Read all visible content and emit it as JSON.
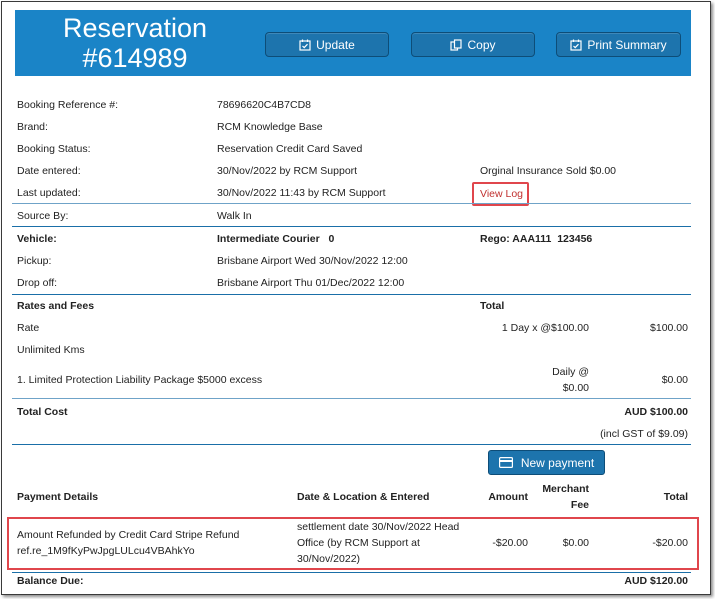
{
  "header": {
    "title_line1": "Reservation",
    "title_line2": "#614989",
    "buttons": {
      "update": "Update",
      "copy": "Copy",
      "print": "Print Summary"
    }
  },
  "details": {
    "booking_ref_label": "Booking Reference #:",
    "booking_ref_value": "78696620C4B7CD8",
    "brand_label": "Brand:",
    "brand_value": "RCM Knowledge Base",
    "status_label": "Booking Status:",
    "status_value": "Reservation Credit Card Saved",
    "entered_label": "Date entered:",
    "entered_value": "30/Nov/2022 by RCM Support",
    "insurance_note": "Orginal Insurance Sold $0.00",
    "updated_label": "Last updated:",
    "updated_value": "30/Nov/2022 11:43 by RCM Support",
    "view_log": "View Log",
    "source_label": "Source By:",
    "source_value": "Walk In"
  },
  "vehicle": {
    "label": "Vehicle:",
    "value": "Intermediate Courier   0",
    "rego": "Rego: AAA111  123456",
    "pickup_label": "Pickup:",
    "pickup_value": "Brisbane Airport Wed 30/Nov/2022 12:00",
    "dropoff_label": "Drop off:",
    "dropoff_value": "Brisbane Airport Thu 01/Dec/2022 12:00"
  },
  "rates": {
    "heading": "Rates and Fees",
    "total_heading": "Total",
    "rate_label": "Rate",
    "rate_calc": "1 Day x @$100.00",
    "rate_total": "$100.00",
    "kms": "Unlimited Kms",
    "package": "1. Limited Protection Liability Package $5000 excess",
    "package_calc_line1": "Daily @",
    "package_calc_line2": "$0.00",
    "package_total": "$0.00",
    "total_cost_label": "Total Cost",
    "total_cost_value": "AUD $100.00",
    "gst": "(incl GST of $9.09)"
  },
  "payments": {
    "new_payment": "New payment",
    "col_details": "Payment Details",
    "col_date": "Date & Location & Entered",
    "col_amount": "Amount",
    "col_merchant_line1": "Merchant",
    "col_merchant_line2": "Fee",
    "col_total": "Total",
    "row": {
      "details_line1": "Amount Refunded by Credit Card Stripe Refund",
      "details_line2": "ref.re_1M9fKyPwJpgLULcu4VBAhkYo",
      "date_line1": "settlement date 30/Nov/2022 Head",
      "date_line2": "Office (by RCM Support at",
      "date_line3": "30/Nov/2022)",
      "amount": "-$20.00",
      "fee": "$0.00",
      "total": "-$20.00"
    },
    "balance_label": "Balance Due:",
    "balance_value": "AUD $120.00"
  }
}
